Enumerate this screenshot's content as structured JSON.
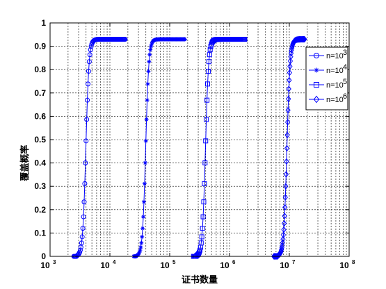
{
  "chart_data": {
    "type": "line",
    "title": "",
    "xlabel": "证书数量",
    "ylabel": "覆盖概率",
    "x_scale": "log",
    "xlim": [
      1000,
      100000000
    ],
    "ylim": [
      0,
      1
    ],
    "x_ticks": [
      {
        "base": "10",
        "exp": "3"
      },
      {
        "base": "10",
        "exp": "4"
      },
      {
        "base": "10",
        "exp": "5"
      },
      {
        "base": "10",
        "exp": "6"
      },
      {
        "base": "10",
        "exp": "7"
      },
      {
        "base": "10",
        "exp": "8"
      }
    ],
    "y_ticks": [
      "0",
      "0.1",
      "0.2",
      "0.3",
      "0.4",
      "0.5",
      "0.6",
      "0.7",
      "0.8",
      "0.9",
      "1"
    ],
    "grid": true,
    "legend_position": "top-right",
    "line_color": "#0000ff",
    "series": [
      {
        "name_base": "n=10",
        "name_exp": "3",
        "marker": "circle",
        "x_start": 2500,
        "x_end": 18000,
        "midpoint": 3700,
        "plateau": 0.93
      },
      {
        "name_base": "n=10",
        "name_exp": "4",
        "marker": "star",
        "x_start": 25000,
        "x_end": 180000,
        "midpoint": 37000,
        "plateau": 0.93
      },
      {
        "name_base": "n=10",
        "name_exp": "5",
        "marker": "square",
        "x_start": 250000,
        "x_end": 1800000,
        "midpoint": 370000,
        "plateau": 0.93
      },
      {
        "name_base": "n=10",
        "name_exp": "6",
        "marker": "diamond",
        "x_start": 5500000,
        "x_end": 18000000,
        "midpoint": 8500000,
        "plateau": 0.93
      }
    ]
  }
}
